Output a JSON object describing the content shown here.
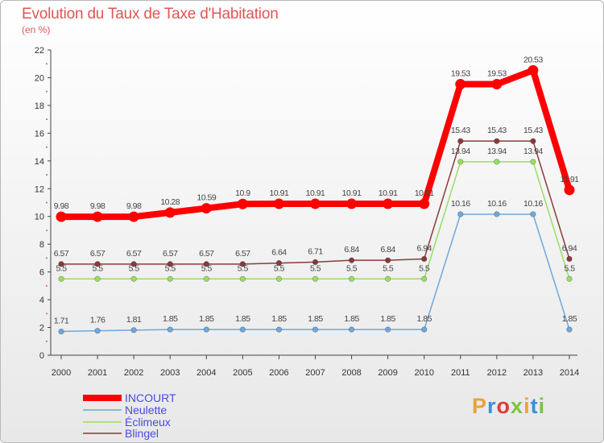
{
  "title": "Evolution du Taux de Taxe d'Habitation",
  "subtitle": "(en %)",
  "logo": {
    "text": "Proxiti",
    "colors": [
      "#e9a23b",
      "#3b8fd9",
      "#e03a3a",
      "#7cc242",
      "#e9a23b",
      "#3b8fd9",
      "#7cc242"
    ]
  },
  "chart_data": {
    "type": "line",
    "x": [
      "2000",
      "2001",
      "2002",
      "2003",
      "2004",
      "2005",
      "2006",
      "2007",
      "2008",
      "2009",
      "2010",
      "2011",
      "2012",
      "2013",
      "2014"
    ],
    "ylim": [
      0,
      22
    ],
    "yticks": [
      0,
      2,
      4,
      6,
      8,
      10,
      12,
      14,
      16,
      18,
      20,
      22
    ],
    "grid": false,
    "legend_position": "bottom-left",
    "series": [
      {
        "name": "INCOURT",
        "color": "#ff0000",
        "values": [
          9.98,
          9.98,
          9.98,
          10.28,
          10.59,
          10.9,
          10.91,
          10.91,
          10.91,
          10.91,
          10.91,
          19.53,
          19.53,
          20.53,
          11.91
        ],
        "labels": [
          "9.98",
          "9.98",
          "9.98",
          "10.28",
          "10.59",
          "10.9",
          "10.91",
          "10.91",
          "10.91",
          "10.91",
          "10.91",
          "19.53",
          "19.53",
          "20.53",
          "11.91"
        ]
      },
      {
        "name": "Neulette",
        "color": "#6fa8dc",
        "values": [
          1.71,
          1.76,
          1.81,
          1.85,
          1.85,
          1.85,
          1.85,
          1.85,
          1.85,
          1.85,
          1.85,
          10.16,
          10.16,
          10.16,
          1.85
        ],
        "labels": [
          "1.71",
          "1.76",
          "1.81",
          "1.85",
          "1.85",
          "1.85",
          "1.85",
          "1.85",
          "1.85",
          "1.85",
          "1.85",
          "10.16",
          "10.16",
          "10.16",
          "1.85"
        ]
      },
      {
        "name": "Éclimeux",
        "color": "#99dd66",
        "values": [
          5.5,
          5.5,
          5.5,
          5.5,
          5.5,
          5.5,
          5.5,
          5.5,
          5.5,
          5.5,
          5.5,
          13.94,
          13.94,
          13.94,
          5.5
        ],
        "labels": [
          "5.5",
          "5.5",
          "5.5",
          "5.5",
          "5.5",
          "5.5",
          "5.5",
          "5.5",
          "5.5",
          "5.5",
          "5.5",
          "13.94",
          "13.94",
          "13.94",
          "5.5"
        ]
      },
      {
        "name": "Blingel",
        "color": "#8b3a3a",
        "values": [
          6.57,
          6.57,
          6.57,
          6.57,
          6.57,
          6.57,
          6.64,
          6.71,
          6.84,
          6.84,
          6.94,
          15.43,
          15.43,
          15.43,
          6.94
        ],
        "labels": [
          "6.57",
          "6.57",
          "6.57",
          "6.57",
          "6.57",
          "6.57",
          "6.64",
          "6.71",
          "6.84",
          "6.84",
          "6.94",
          "15.43",
          "15.43",
          "15.43",
          "6.94"
        ]
      }
    ]
  }
}
